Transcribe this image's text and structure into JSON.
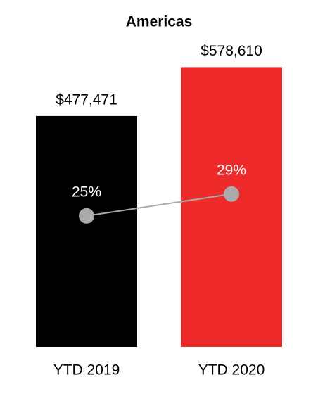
{
  "chart_data": {
    "type": "bar",
    "title": "Americas",
    "categories": [
      "YTD 2019",
      "YTD 2020"
    ],
    "series": [
      {
        "type": "bar",
        "colors": [
          "#000000",
          "#ee2a2a"
        ],
        "values": [
          477471,
          578610
        ],
        "value_labels": [
          "$477,471",
          "$578,610"
        ]
      },
      {
        "type": "line",
        "axis": "y2",
        "color": "#aaaaaa",
        "values": [
          25,
          29
        ],
        "value_labels": [
          "25%",
          "29%"
        ]
      }
    ],
    "ylim": [
      0,
      700000
    ],
    "y2lim": [
      1,
      63
    ],
    "grid": false
  }
}
